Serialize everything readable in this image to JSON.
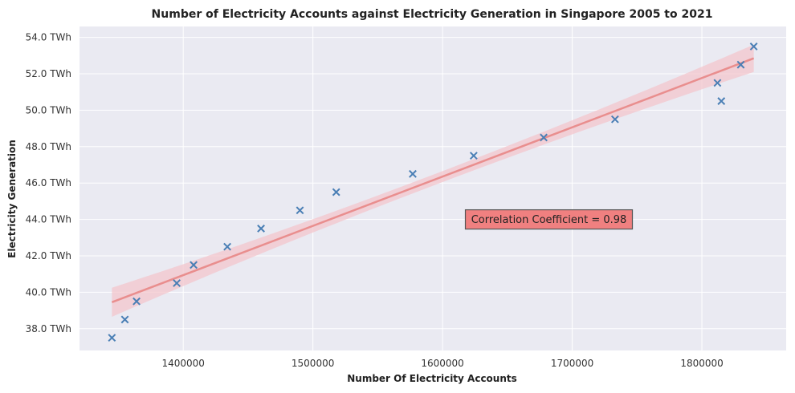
{
  "chart_data": {
    "type": "scatter",
    "title": "Number of Electricity Accounts against Electricity Generation in Singapore 2005 to 2021",
    "xlabel": "Number Of Electricity Accounts",
    "ylabel": "Electricity Generation",
    "xlim": [
      1320000,
      1865000
    ],
    "ylim": [
      36.8,
      54.6
    ],
    "x_ticks": [
      1400000,
      1500000,
      1600000,
      1700000,
      1800000
    ],
    "x_tick_labels": [
      "1400000",
      "1500000",
      "1600000",
      "1700000",
      "1800000"
    ],
    "y_ticks": [
      38,
      40,
      42,
      44,
      46,
      48,
      50,
      52,
      54
    ],
    "y_tick_labels": [
      "38.0 TWh",
      "40.0 TWh",
      "42.0 TWh",
      "44.0 TWh",
      "46.0 TWh",
      "48.0 TWh",
      "50.0 TWh",
      "52.0 TWh",
      "54.0 TWh"
    ],
    "grid": true,
    "points": [
      {
        "x": 1345000,
        "y": 37.5
      },
      {
        "x": 1355000,
        "y": 38.5
      },
      {
        "x": 1364000,
        "y": 39.5
      },
      {
        "x": 1395000,
        "y": 40.5
      },
      {
        "x": 1408000,
        "y": 41.5
      },
      {
        "x": 1434000,
        "y": 42.5
      },
      {
        "x": 1460000,
        "y": 43.5
      },
      {
        "x": 1490000,
        "y": 44.5
      },
      {
        "x": 1518000,
        "y": 45.5
      },
      {
        "x": 1577000,
        "y": 46.5
      },
      {
        "x": 1624000,
        "y": 47.5
      },
      {
        "x": 1678000,
        "y": 48.5
      },
      {
        "x": 1733000,
        "y": 49.5
      },
      {
        "x": 1812000,
        "y": 51.5
      },
      {
        "x": 1815000,
        "y": 50.5
      },
      {
        "x": 1830000,
        "y": 52.5
      },
      {
        "x": 1840000,
        "y": 53.5
      }
    ],
    "regression": {
      "x": [
        1345000,
        1840000
      ],
      "y": [
        39.45,
        52.85
      ],
      "ci_lower": [
        38.7,
        52.2
      ],
      "ci_upper": [
        40.3,
        53.7
      ],
      "ci_mid_x": 1590000,
      "ci_mid_halfwidth": 0.3
    },
    "annotation": {
      "text": "Correlation Coefficient = 0.98",
      "x": 1682000,
      "y": 44.0
    },
    "colors": {
      "background": "#eaeaf2",
      "grid": "#ffffff",
      "marker": "#4a7fb5",
      "line": "#e98e8e",
      "band": "#f3c5cc",
      "annotation_box": "#f08080",
      "annotation_border": "#555555"
    }
  }
}
